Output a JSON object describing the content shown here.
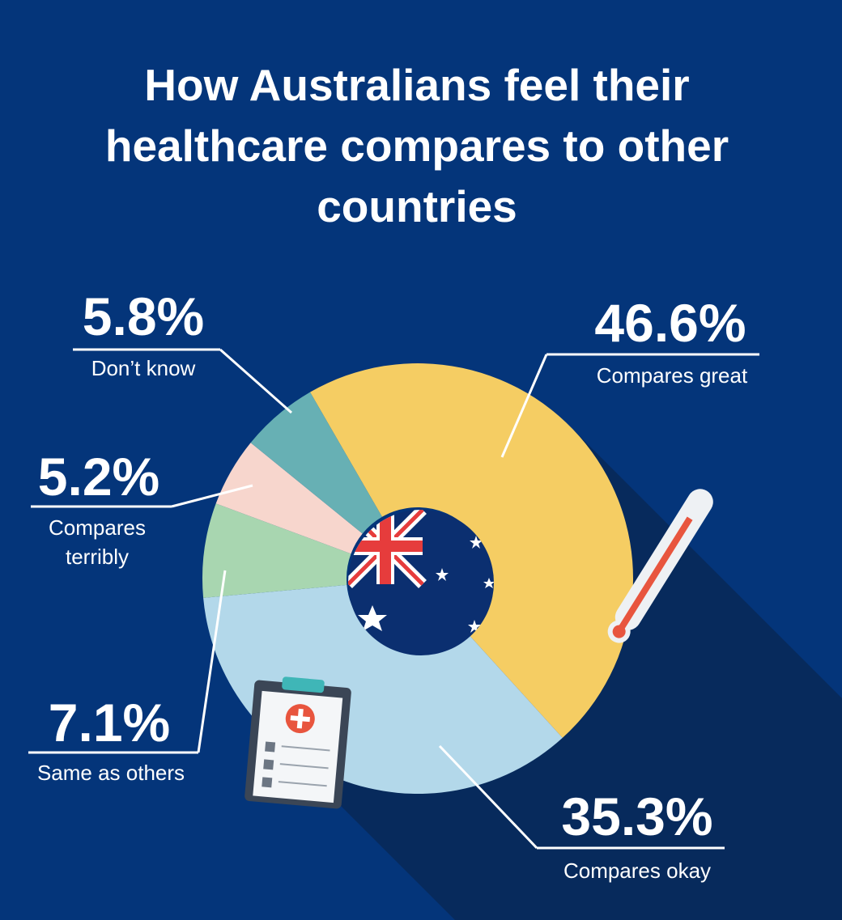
{
  "chart_data": {
    "type": "donut",
    "title": "How Australians feel their healthcare compares to other countries",
    "categories": [
      "Compares great",
      "Compares okay",
      "Same as others",
      "Compares terribly",
      "Don’t know"
    ],
    "values": [
      46.6,
      35.3,
      7.1,
      5.2,
      5.8
    ],
    "value_labels": [
      "46.6%",
      "35.3%",
      "7.1%",
      "5.2%",
      "5.8%"
    ],
    "colors": [
      "#f5cd63",
      "#b3d8ea",
      "#a8d6b0",
      "#f7d6cd",
      "#67b0b4"
    ]
  }
}
